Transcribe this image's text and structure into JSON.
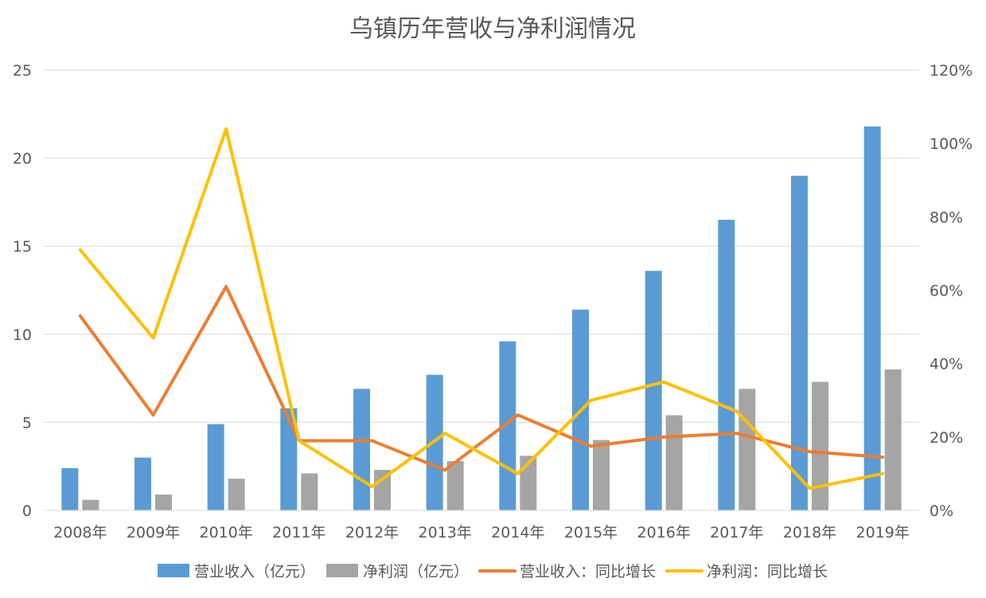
{
  "chart_data": {
    "type": "bar",
    "title": "乌镇历年营收与净利润情况",
    "categories": [
      "2008年",
      "2009年",
      "2010年",
      "2011年",
      "2012年",
      "2013年",
      "2014年",
      "2015年",
      "2016年",
      "2017年",
      "2018年",
      "2019年"
    ],
    "left_axis": {
      "ylim": [
        0,
        25
      ],
      "ticks": [
        0,
        5,
        10,
        15,
        20,
        25
      ],
      "tick_labels": [
        "0",
        "5",
        "10",
        "15",
        "20",
        "25"
      ]
    },
    "right_axis": {
      "ylim": [
        0,
        1.2
      ],
      "ticks": [
        0,
        0.2,
        0.4,
        0.6,
        0.8,
        1.0,
        1.2
      ],
      "tick_labels": [
        "0%",
        "20%",
        "40%",
        "60%",
        "80%",
        "100%",
        "120%"
      ]
    },
    "grid": true,
    "legend_position": "bottom",
    "series": [
      {
        "name": "营业收入（亿元）",
        "type": "bar",
        "axis": "left",
        "color": "#5b9bd5",
        "values": [
          2.4,
          3.0,
          4.9,
          5.8,
          6.9,
          7.7,
          9.6,
          11.4,
          13.6,
          16.5,
          19.0,
          21.8
        ]
      },
      {
        "name": "净利润（亿元）",
        "type": "bar",
        "axis": "left",
        "color": "#a5a5a5",
        "values": [
          0.6,
          0.9,
          1.8,
          2.1,
          2.3,
          2.8,
          3.1,
          4.0,
          5.4,
          6.9,
          7.3,
          8.0
        ]
      },
      {
        "name": "营业收入：同比增长",
        "type": "line",
        "axis": "right",
        "color": "#ed7d31",
        "values": [
          0.53,
          0.26,
          0.61,
          0.19,
          0.19,
          0.11,
          0.26,
          0.175,
          0.2,
          0.21,
          0.16,
          0.145
        ]
      },
      {
        "name": "净利润：同比增长",
        "type": "line",
        "axis": "right",
        "color": "#ffc000",
        "values": [
          0.71,
          0.47,
          1.04,
          0.19,
          0.065,
          0.21,
          0.1,
          0.3,
          0.35,
          0.27,
          0.06,
          0.1
        ]
      }
    ]
  }
}
